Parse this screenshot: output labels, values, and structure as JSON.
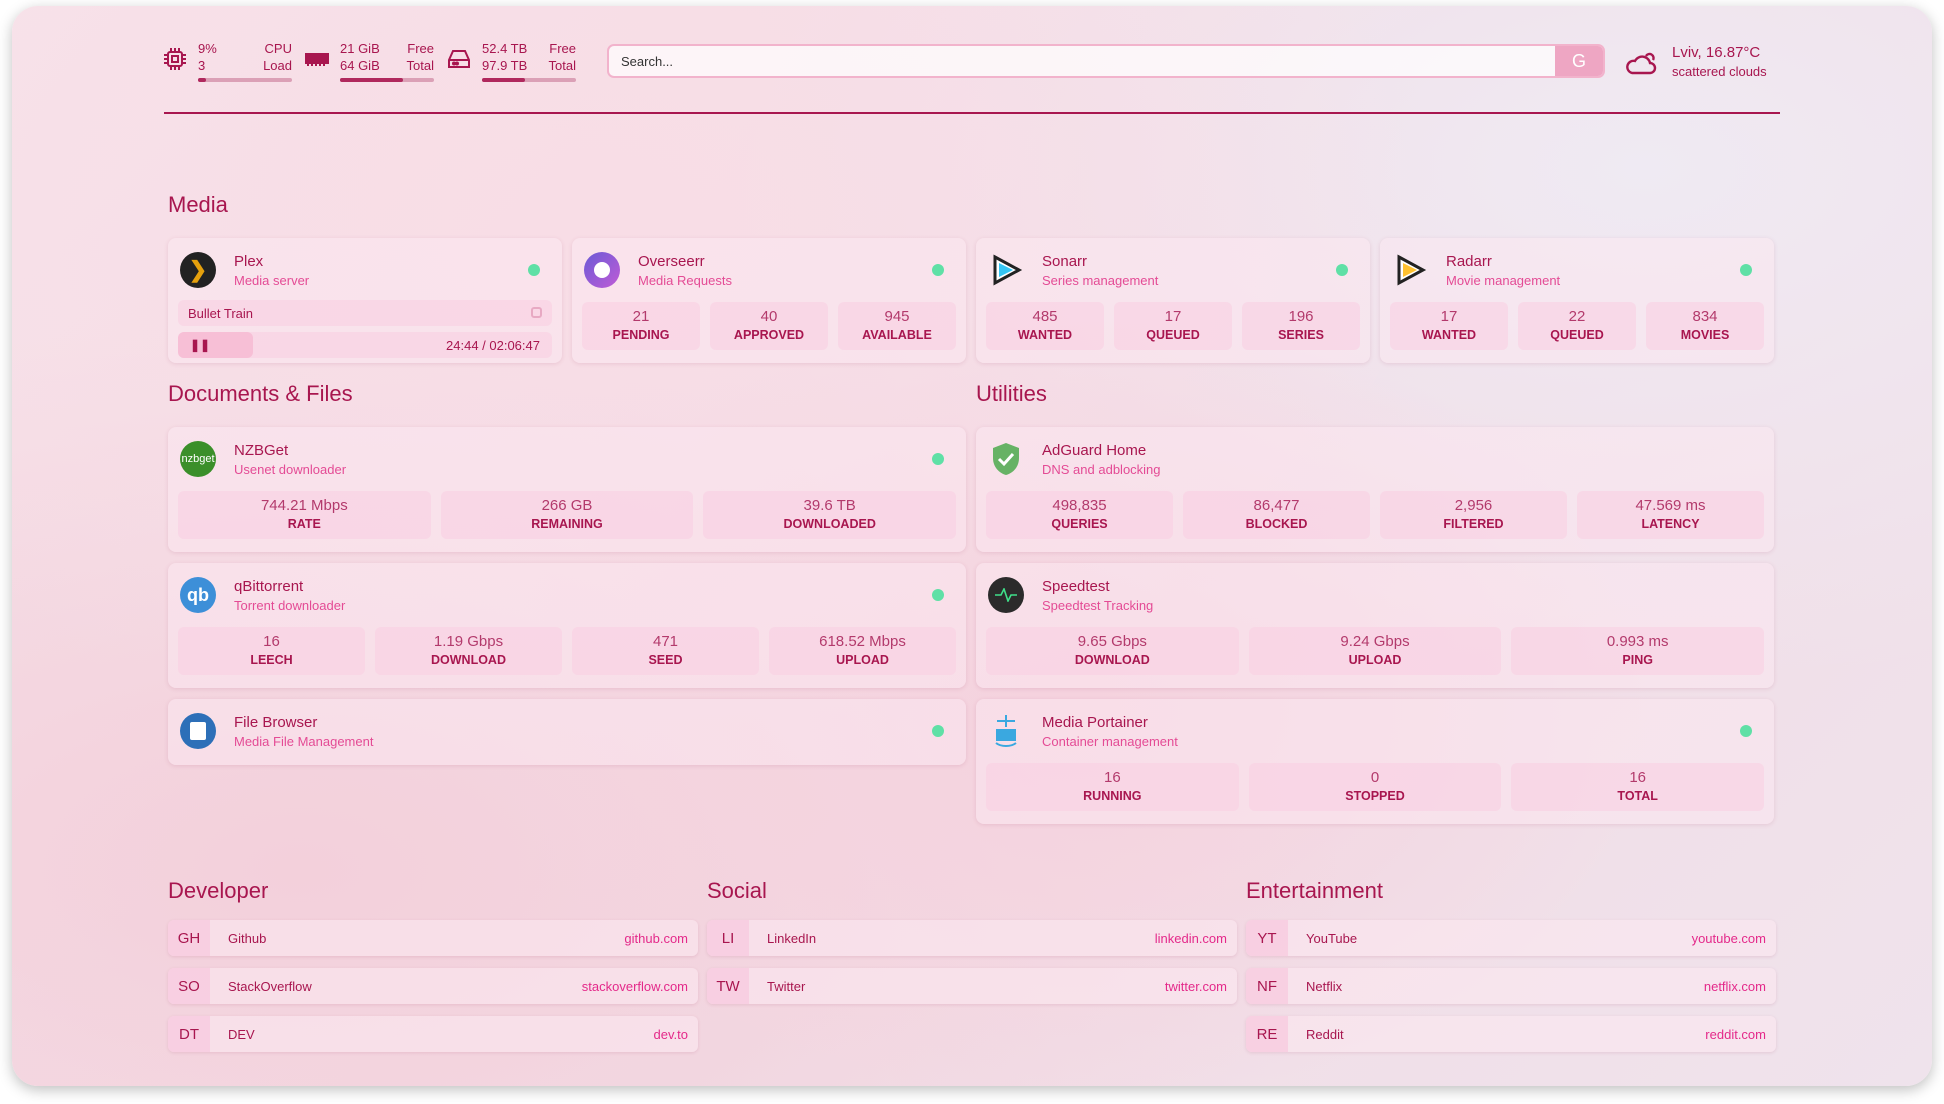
{
  "resources": {
    "cpu": {
      "icon": "cpu-icon",
      "value": "9%",
      "label": "CPU",
      "value2": "3",
      "label2": "Load",
      "fill": 0.09
    },
    "memory": {
      "icon": "memory-icon",
      "value": "21 GiB",
      "label": "Free",
      "value2": "64 GiB",
      "label2": "Total",
      "fill": 0.67
    },
    "disk": {
      "icon": "disk-icon",
      "value": "52.4 TB",
      "label": "Free",
      "value2": "97.9 TB",
      "label2": "Total",
      "fill": 0.46
    }
  },
  "search": {
    "placeholder": "Search...",
    "provider": "G"
  },
  "weather": {
    "icon": "cloud-sun-icon",
    "location": "Lviv, 16.87°C",
    "condition": "scattered clouds"
  },
  "colors": {
    "accent": "#a8164f",
    "subtitle": "#e44b95",
    "status_ok": "#5fe0a6"
  },
  "groups": {
    "media": "Media",
    "documents": "Documents & Files",
    "utilities": "Utilities",
    "developer": "Developer",
    "social": "Social",
    "entertainment": "Entertainment"
  },
  "services": [
    {
      "id": "plex",
      "name": "Plex",
      "desc": "Media server",
      "icon": "plex-icon",
      "now_playing": {
        "title": "Bullet Train",
        "time": "24:44 / 02:06:47",
        "state": "paused"
      }
    },
    {
      "id": "overseerr",
      "name": "Overseerr",
      "desc": "Media Requests",
      "icon": "overseerr-icon",
      "stats": [
        {
          "v": "21",
          "l": "PENDING"
        },
        {
          "v": "40",
          "l": "APPROVED"
        },
        {
          "v": "945",
          "l": "AVAILABLE"
        }
      ]
    },
    {
      "id": "sonarr",
      "name": "Sonarr",
      "desc": "Series management",
      "icon": "sonarr-icon",
      "stats": [
        {
          "v": "485",
          "l": "WANTED"
        },
        {
          "v": "17",
          "l": "QUEUED"
        },
        {
          "v": "196",
          "l": "SERIES"
        }
      ]
    },
    {
      "id": "radarr",
      "name": "Radarr",
      "desc": "Movie management",
      "icon": "radarr-icon",
      "stats": [
        {
          "v": "17",
          "l": "WANTED"
        },
        {
          "v": "22",
          "l": "QUEUED"
        },
        {
          "v": "834",
          "l": "MOVIES"
        }
      ]
    },
    {
      "id": "nzbget",
      "name": "NZBGet",
      "desc": "Usenet downloader",
      "icon": "nzbget-icon",
      "stats": [
        {
          "v": "744.21 Mbps",
          "l": "RATE"
        },
        {
          "v": "266 GB",
          "l": "REMAINING"
        },
        {
          "v": "39.6 TB",
          "l": "DOWNLOADED"
        }
      ]
    },
    {
      "id": "qbittorrent",
      "name": "qBittorrent",
      "desc": "Torrent downloader",
      "icon": "qbittorrent-icon",
      "stats": [
        {
          "v": "16",
          "l": "LEECH"
        },
        {
          "v": "1.19 Gbps",
          "l": "DOWNLOAD"
        },
        {
          "v": "471",
          "l": "SEED"
        },
        {
          "v": "618.52 Mbps",
          "l": "UPLOAD"
        }
      ]
    },
    {
      "id": "filebrowser",
      "name": "File Browser",
      "desc": "Media File Management",
      "icon": "filebrowser-icon"
    },
    {
      "id": "adguard",
      "name": "AdGuard Home",
      "desc": "DNS and adblocking",
      "icon": "adguard-icon",
      "stats": [
        {
          "v": "498,835",
          "l": "QUERIES"
        },
        {
          "v": "86,477",
          "l": "BLOCKED"
        },
        {
          "v": "2,956",
          "l": "FILTERED"
        },
        {
          "v": "47.569 ms",
          "l": "LATENCY"
        }
      ]
    },
    {
      "id": "speedtest",
      "name": "Speedtest",
      "desc": "Speedtest Tracking",
      "icon": "speedtest-icon",
      "stats": [
        {
          "v": "9.65 Gbps",
          "l": "DOWNLOAD"
        },
        {
          "v": "9.24 Gbps",
          "l": "UPLOAD"
        },
        {
          "v": "0.993 ms",
          "l": "PING"
        }
      ]
    },
    {
      "id": "portainer",
      "name": "Media Portainer",
      "desc": "Container management",
      "icon": "portainer-icon",
      "stats": [
        {
          "v": "16",
          "l": "RUNNING"
        },
        {
          "v": "0",
          "l": "STOPPED"
        },
        {
          "v": "16",
          "l": "TOTAL"
        }
      ]
    }
  ],
  "bookmarks": [
    [
      {
        "abbr": "GH",
        "name": "Github",
        "url": "github.com"
      },
      {
        "abbr": "SO",
        "name": "StackOverflow",
        "url": "stackoverflow.com"
      },
      {
        "abbr": "DT",
        "name": "DEV",
        "url": "dev.to"
      }
    ],
    [
      {
        "abbr": "LI",
        "name": "LinkedIn",
        "url": "linkedin.com"
      },
      {
        "abbr": "TW",
        "name": "Twitter",
        "url": "twitter.com"
      }
    ],
    [
      {
        "abbr": "YT",
        "name": "YouTube",
        "url": "youtube.com"
      },
      {
        "abbr": "NF",
        "name": "Netflix",
        "url": "netflix.com"
      },
      {
        "abbr": "RE",
        "name": "Reddit",
        "url": "reddit.com"
      }
    ]
  ]
}
